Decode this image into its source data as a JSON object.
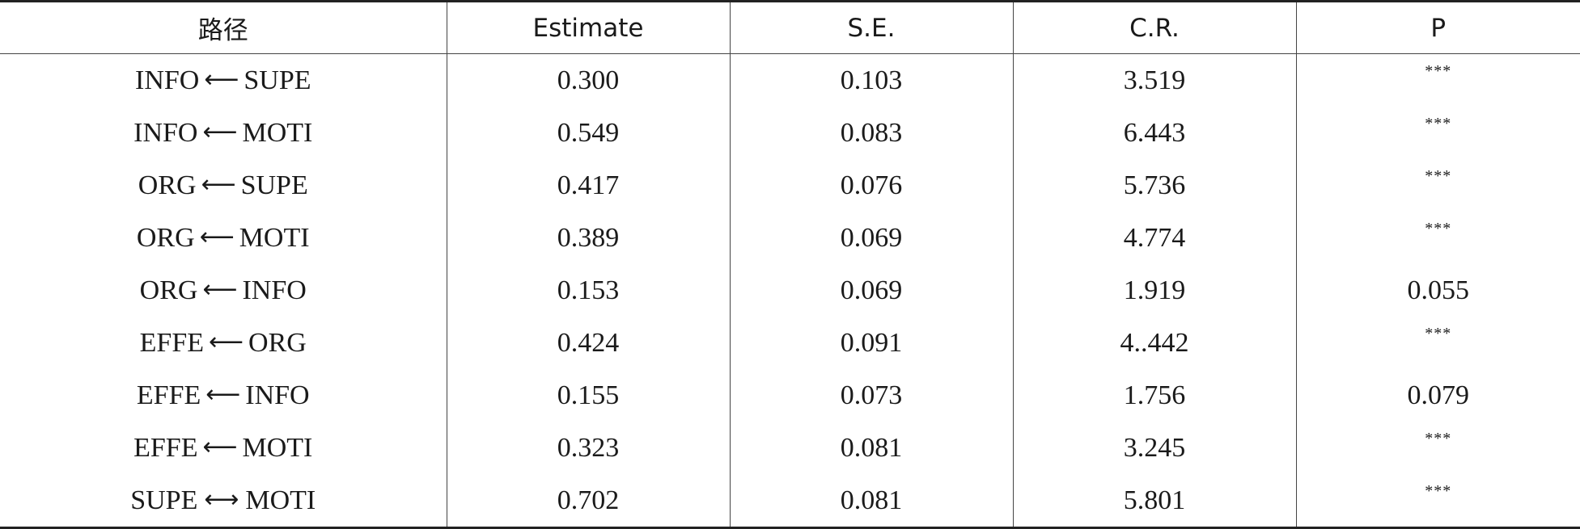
{
  "table": {
    "headers": [
      "路径",
      "Estimate",
      "S.E.",
      "C.R.",
      "P"
    ],
    "rows": [
      {
        "from": "INFO",
        "arrow": "⟵",
        "to": "SUPE",
        "estimate": "0.300",
        "se": "0.103",
        "cr": "3.519",
        "p": "***"
      },
      {
        "from": "INFO",
        "arrow": "⟵",
        "to": "MOTI",
        "estimate": "0.549",
        "se": "0.083",
        "cr": "6.443",
        "p": "***"
      },
      {
        "from": "ORG",
        "arrow": "⟵",
        "to": "SUPE",
        "estimate": "0.417",
        "se": "0.076",
        "cr": "5.736",
        "p": "***"
      },
      {
        "from": "ORG",
        "arrow": "⟵",
        "to": "MOTI",
        "estimate": "0.389",
        "se": "0.069",
        "cr": "4.774",
        "p": "***"
      },
      {
        "from": "ORG",
        "arrow": "⟵",
        "to": "INFO",
        "estimate": "0.153",
        "se": "0.069",
        "cr": "1.919",
        "p": "0.055"
      },
      {
        "from": "EFFE",
        "arrow": "⟵",
        "to": "ORG",
        "estimate": "0.424",
        "se": "0.091",
        "cr": "4..442",
        "p": "***"
      },
      {
        "from": "EFFE",
        "arrow": "⟵",
        "to": "INFO",
        "estimate": "0.155",
        "se": "0.073",
        "cr": "1.756",
        "p": "0.079"
      },
      {
        "from": "EFFE",
        "arrow": "⟵",
        "to": "MOTI",
        "estimate": "0.323",
        "se": "0.081",
        "cr": "3.245",
        "p": "***"
      },
      {
        "from": "SUPE",
        "arrow": "⟷",
        "to": "MOTI",
        "estimate": "0.702",
        "se": "0.081",
        "cr": "5.801",
        "p": "***"
      }
    ]
  }
}
